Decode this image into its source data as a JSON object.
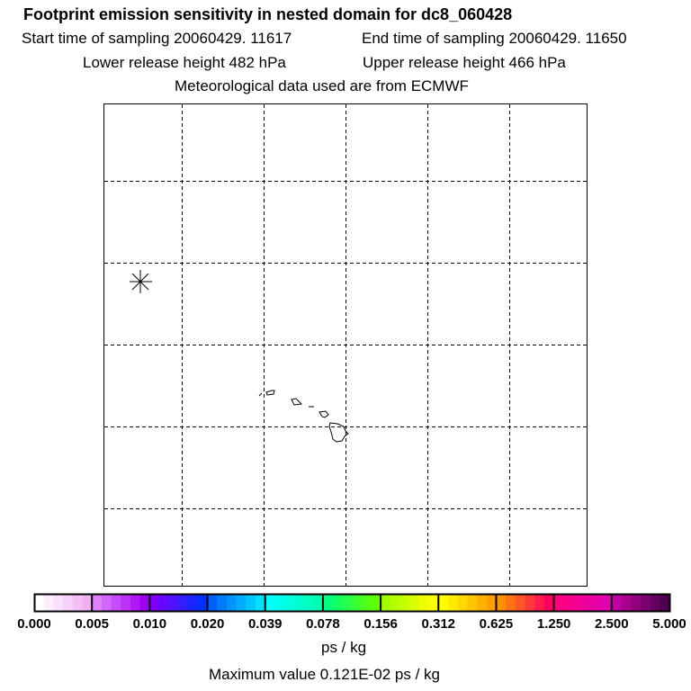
{
  "chart_data": {
    "type": "heatmap",
    "title": "Footprint emission sensitivity in nested domain for dc8_060428",
    "subtitle_lines": {
      "start": "Start time of sampling 20060429. 11617",
      "end": "End time of sampling 20060429. 11650",
      "lower": "Lower release height  482 hPa",
      "upper": "Upper release height  466 hPa",
      "met": "Meteorological data used are from ECMWF"
    },
    "colorbar": {
      "ticks": [
        "0.000",
        "0.005",
        "0.010",
        "0.020",
        "0.039",
        "0.078",
        "0.156",
        "0.312",
        "0.625",
        "1.250",
        "2.500",
        "5.000"
      ],
      "unit": "ps / kg",
      "segment_colors": [
        [
          "#ffffff",
          "#f0b0f0"
        ],
        [
          "#e080ff",
          "#a000f0"
        ],
        [
          "#8000ff",
          "#0030ff"
        ],
        [
          "#0060ff",
          "#00e0ff"
        ],
        [
          "#00ffff",
          "#00ffb0"
        ],
        [
          "#00ff80",
          "#60ff00"
        ],
        [
          "#a0ff00",
          "#ffff00"
        ],
        [
          "#ffff00",
          "#ffa000"
        ],
        [
          "#ff9000",
          "#ff0060"
        ],
        [
          "#ff0080",
          "#e000b0"
        ],
        [
          "#c000a0",
          "#500050"
        ]
      ]
    },
    "max_value_text": "Maximum value  0.121E-02 ps / kg",
    "release_marker": "asterisk",
    "grid": true
  }
}
